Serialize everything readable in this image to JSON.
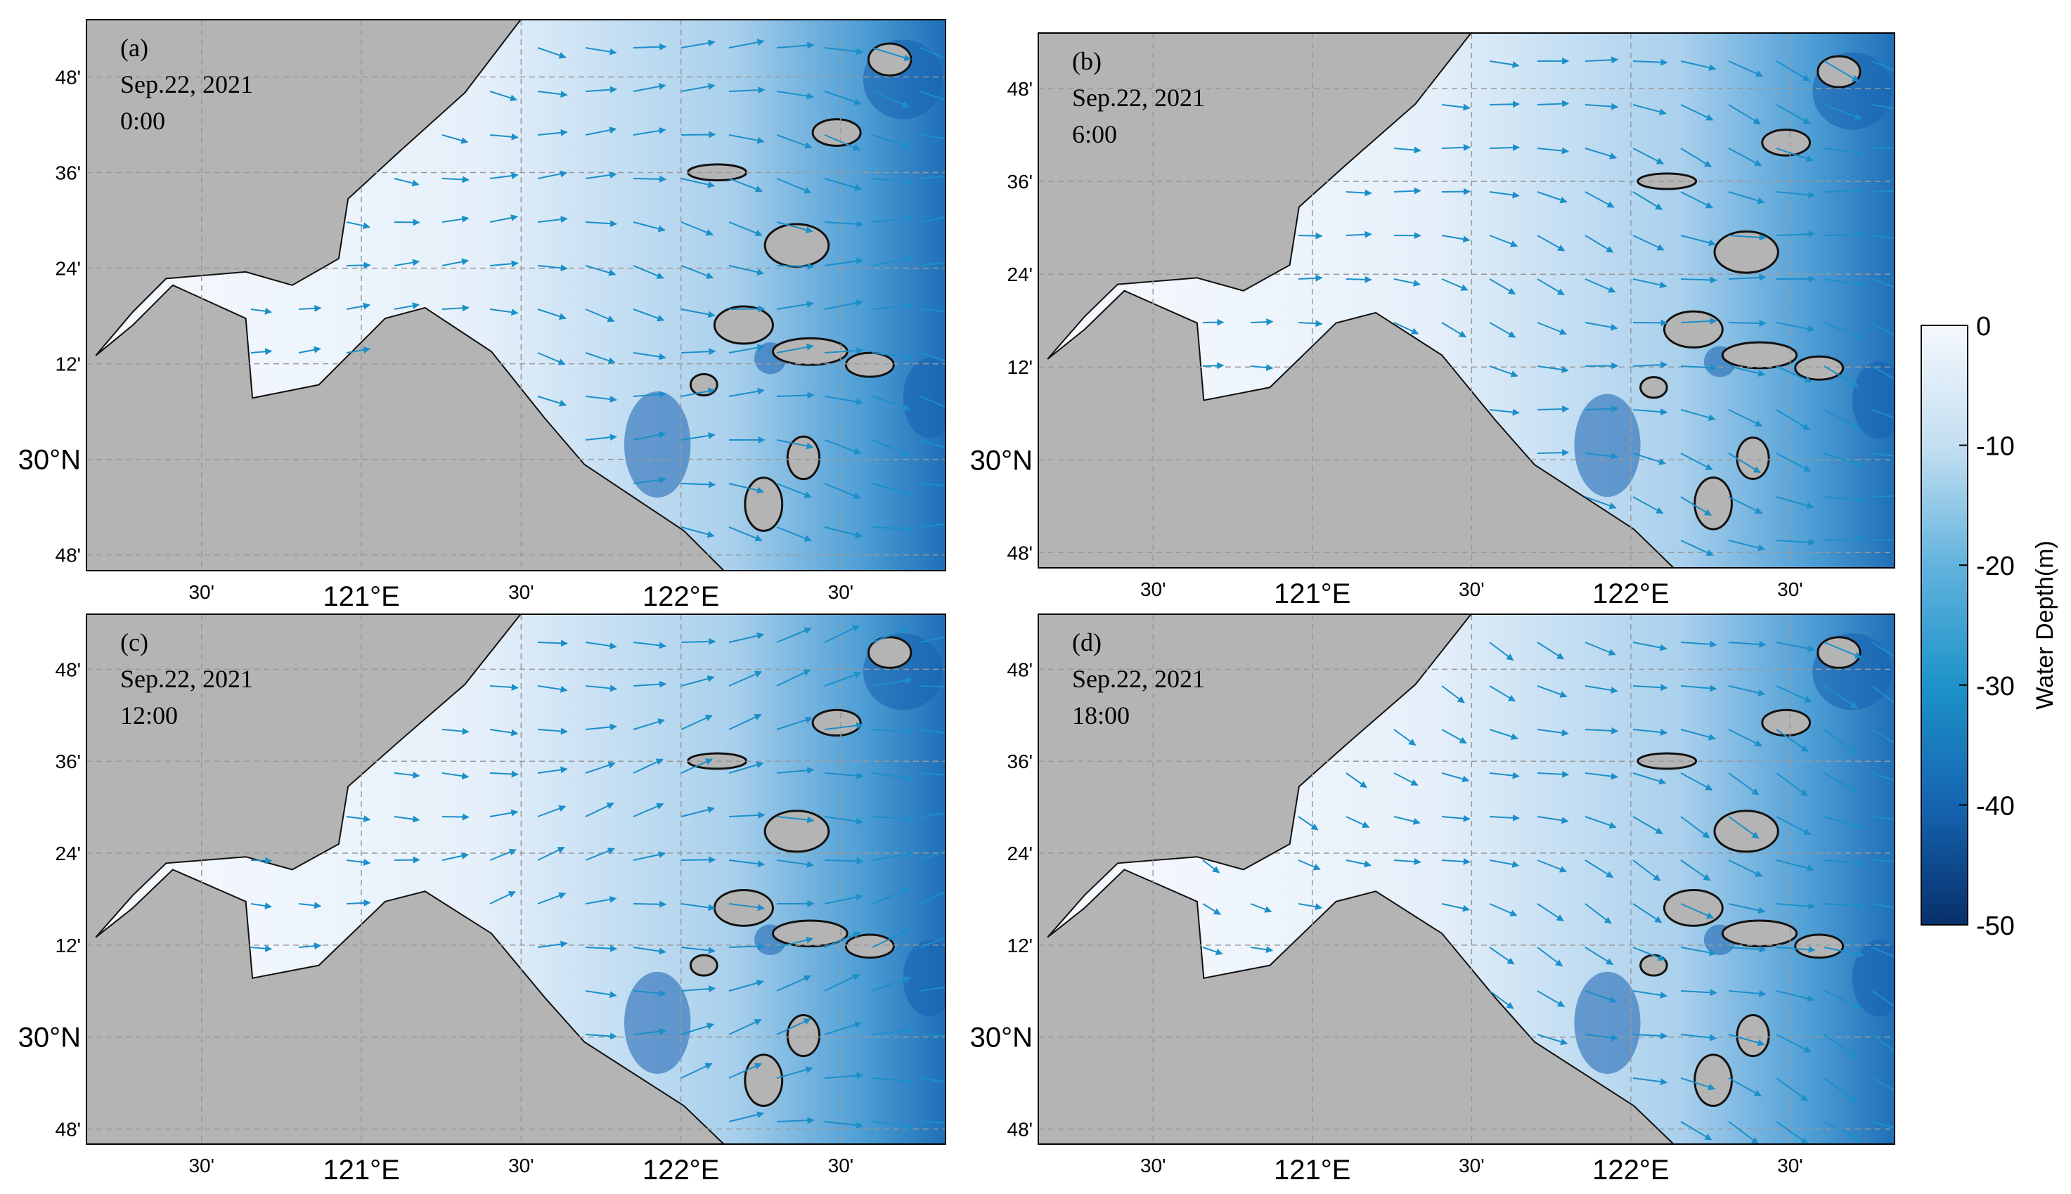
{
  "panels": [
    {
      "label": "(a)",
      "date": "Sep.22, 2021",
      "time": "0:00"
    },
    {
      "label": "(b)",
      "date": "Sep.22, 2021",
      "time": "6:00"
    },
    {
      "label": "(c)",
      "date": "Sep.22, 2021",
      "time": "12:00"
    },
    {
      "label": "(d)",
      "date": "Sep.22, 2021",
      "time": "18:00"
    }
  ],
  "y_axis_labels": [
    "48'",
    "36'",
    "24'",
    "12'",
    "30°N",
    "48'"
  ],
  "x_axis_labels": [
    "30'",
    "121°E",
    "30'",
    "122°E",
    "30'"
  ],
  "colorbar": {
    "label": "Water Depth(m)",
    "lim": [
      0,
      -50
    ],
    "ticks": [
      0,
      -10,
      -20,
      -30,
      -40,
      -50
    ]
  }
}
